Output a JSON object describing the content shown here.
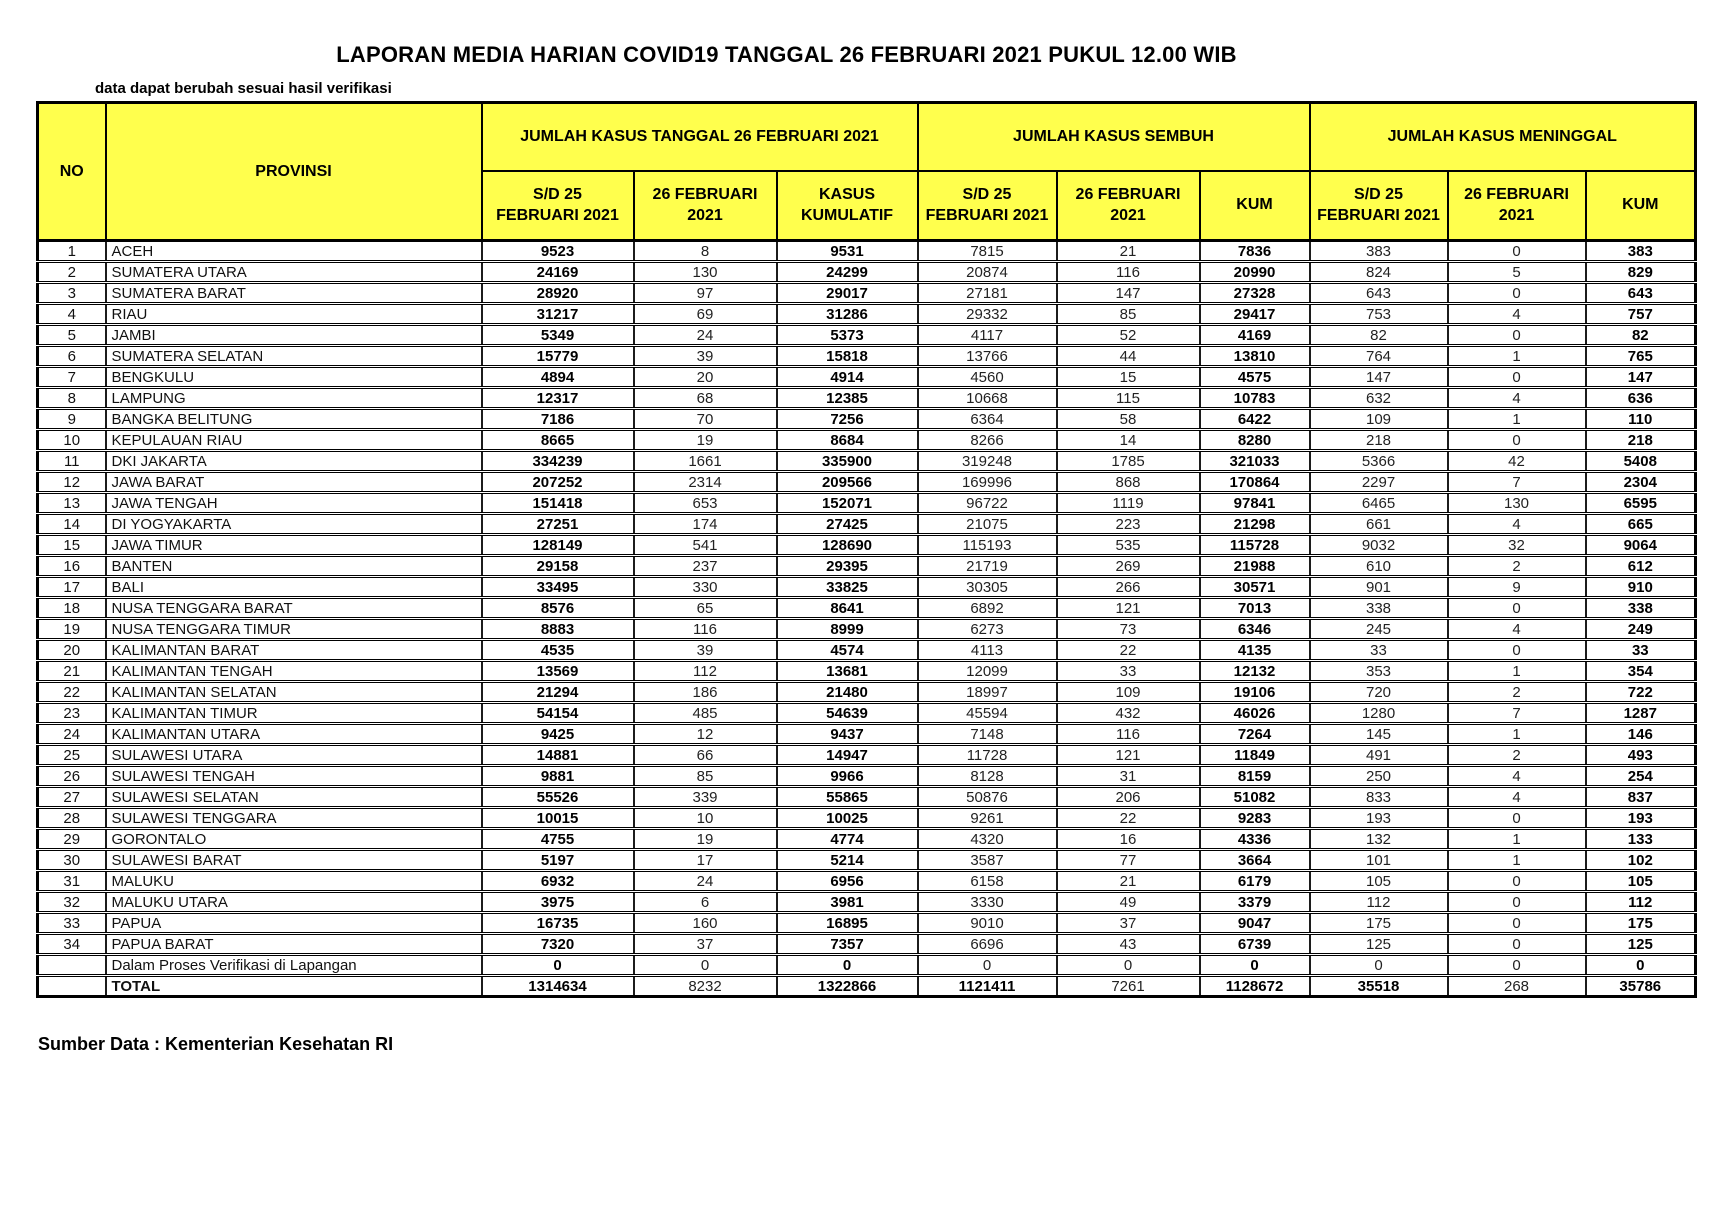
{
  "title": "LAPORAN MEDIA HARIAN COVID19 TANGGAL 26 FEBRUARI 2021 PUKUL 12.00 WIB",
  "note": "data dapat berubah sesuai hasil verifikasi",
  "source": "Sumber Data : Kementerian Kesehatan RI",
  "colors": {
    "header_bg": "#FFFF4D",
    "border": "#000000"
  },
  "table": {
    "header": {
      "no": "NO",
      "provinsi": "PROVINSI",
      "groups": [
        {
          "label": "JUMLAH KASUS TANGGAL 26 FEBRUARI 2021",
          "cols": [
            "S/D 25\nFEBRUARI 2021",
            "26 FEBRUARI\n2021",
            "KASUS\nKUMULATIF"
          ]
        },
        {
          "label": "JUMLAH KASUS SEMBUH",
          "cols": [
            "S/D 25\nFEBRUARI 2021",
            "26 FEBRUARI\n2021",
            "KUM"
          ]
        },
        {
          "label": "JUMLAH KASUS MENINGGAL",
          "cols": [
            "S/D 25\nFEBRUARI 2021",
            "26 FEBRUARI\n2021",
            "KUM"
          ]
        }
      ]
    },
    "rows": [
      {
        "no": 1,
        "provinsi": "ACEH",
        "values": [
          9523,
          8,
          9531,
          7815,
          21,
          7836,
          383,
          0,
          383
        ]
      },
      {
        "no": 2,
        "provinsi": "SUMATERA UTARA",
        "values": [
          24169,
          130,
          24299,
          20874,
          116,
          20990,
          824,
          5,
          829
        ]
      },
      {
        "no": 3,
        "provinsi": "SUMATERA BARAT",
        "values": [
          28920,
          97,
          29017,
          27181,
          147,
          27328,
          643,
          0,
          643
        ]
      },
      {
        "no": 4,
        "provinsi": "RIAU",
        "values": [
          31217,
          69,
          31286,
          29332,
          85,
          29417,
          753,
          4,
          757
        ]
      },
      {
        "no": 5,
        "provinsi": "JAMBI",
        "values": [
          5349,
          24,
          5373,
          4117,
          52,
          4169,
          82,
          0,
          82
        ]
      },
      {
        "no": 6,
        "provinsi": "SUMATERA SELATAN",
        "values": [
          15779,
          39,
          15818,
          13766,
          44,
          13810,
          764,
          1,
          765
        ]
      },
      {
        "no": 7,
        "provinsi": "BENGKULU",
        "values": [
          4894,
          20,
          4914,
          4560,
          15,
          4575,
          147,
          0,
          147
        ]
      },
      {
        "no": 8,
        "provinsi": "LAMPUNG",
        "values": [
          12317,
          68,
          12385,
          10668,
          115,
          10783,
          632,
          4,
          636
        ]
      },
      {
        "no": 9,
        "provinsi": "BANGKA BELITUNG",
        "values": [
          7186,
          70,
          7256,
          6364,
          58,
          6422,
          109,
          1,
          110
        ]
      },
      {
        "no": 10,
        "provinsi": "KEPULAUAN RIAU",
        "values": [
          8665,
          19,
          8684,
          8266,
          14,
          8280,
          218,
          0,
          218
        ]
      },
      {
        "no": 11,
        "provinsi": "DKI JAKARTA",
        "values": [
          334239,
          1661,
          335900,
          319248,
          1785,
          321033,
          5366,
          42,
          5408
        ]
      },
      {
        "no": 12,
        "provinsi": "JAWA BARAT",
        "values": [
          207252,
          2314,
          209566,
          169996,
          868,
          170864,
          2297,
          7,
          2304
        ]
      },
      {
        "no": 13,
        "provinsi": "JAWA TENGAH",
        "values": [
          151418,
          653,
          152071,
          96722,
          1119,
          97841,
          6465,
          130,
          6595
        ]
      },
      {
        "no": 14,
        "provinsi": "DI YOGYAKARTA",
        "values": [
          27251,
          174,
          27425,
          21075,
          223,
          21298,
          661,
          4,
          665
        ]
      },
      {
        "no": 15,
        "provinsi": "JAWA TIMUR",
        "values": [
          128149,
          541,
          128690,
          115193,
          535,
          115728,
          9032,
          32,
          9064
        ]
      },
      {
        "no": 16,
        "provinsi": "BANTEN",
        "values": [
          29158,
          237,
          29395,
          21719,
          269,
          21988,
          610,
          2,
          612
        ]
      },
      {
        "no": 17,
        "provinsi": "BALI",
        "values": [
          33495,
          330,
          33825,
          30305,
          266,
          30571,
          901,
          9,
          910
        ]
      },
      {
        "no": 18,
        "provinsi": "NUSA TENGGARA BARAT",
        "values": [
          8576,
          65,
          8641,
          6892,
          121,
          7013,
          338,
          0,
          338
        ]
      },
      {
        "no": 19,
        "provinsi": "NUSA TENGGARA TIMUR",
        "values": [
          8883,
          116,
          8999,
          6273,
          73,
          6346,
          245,
          4,
          249
        ]
      },
      {
        "no": 20,
        "provinsi": "KALIMANTAN BARAT",
        "values": [
          4535,
          39,
          4574,
          4113,
          22,
          4135,
          33,
          0,
          33
        ]
      },
      {
        "no": 21,
        "provinsi": "KALIMANTAN TENGAH",
        "values": [
          13569,
          112,
          13681,
          12099,
          33,
          12132,
          353,
          1,
          354
        ]
      },
      {
        "no": 22,
        "provinsi": "KALIMANTAN SELATAN",
        "values": [
          21294,
          186,
          21480,
          18997,
          109,
          19106,
          720,
          2,
          722
        ]
      },
      {
        "no": 23,
        "provinsi": "KALIMANTAN TIMUR",
        "values": [
          54154,
          485,
          54639,
          45594,
          432,
          46026,
          1280,
          7,
          1287
        ]
      },
      {
        "no": 24,
        "provinsi": "KALIMANTAN UTARA",
        "values": [
          9425,
          12,
          9437,
          7148,
          116,
          7264,
          145,
          1,
          146
        ]
      },
      {
        "no": 25,
        "provinsi": "SULAWESI UTARA",
        "values": [
          14881,
          66,
          14947,
          11728,
          121,
          11849,
          491,
          2,
          493
        ]
      },
      {
        "no": 26,
        "provinsi": "SULAWESI TENGAH",
        "values": [
          9881,
          85,
          9966,
          8128,
          31,
          8159,
          250,
          4,
          254
        ]
      },
      {
        "no": 27,
        "provinsi": "SULAWESI SELATAN",
        "values": [
          55526,
          339,
          55865,
          50876,
          206,
          51082,
          833,
          4,
          837
        ]
      },
      {
        "no": 28,
        "provinsi": "SULAWESI TENGGARA",
        "values": [
          10015,
          10,
          10025,
          9261,
          22,
          9283,
          193,
          0,
          193
        ]
      },
      {
        "no": 29,
        "provinsi": "GORONTALO",
        "values": [
          4755,
          19,
          4774,
          4320,
          16,
          4336,
          132,
          1,
          133
        ]
      },
      {
        "no": 30,
        "provinsi": "SULAWESI BARAT",
        "values": [
          5197,
          17,
          5214,
          3587,
          77,
          3664,
          101,
          1,
          102
        ]
      },
      {
        "no": 31,
        "provinsi": "MALUKU",
        "values": [
          6932,
          24,
          6956,
          6158,
          21,
          6179,
          105,
          0,
          105
        ]
      },
      {
        "no": 32,
        "provinsi": "MALUKU UTARA",
        "values": [
          3975,
          6,
          3981,
          3330,
          49,
          3379,
          112,
          0,
          112
        ]
      },
      {
        "no": 33,
        "provinsi": "PAPUA",
        "values": [
          16735,
          160,
          16895,
          9010,
          37,
          9047,
          175,
          0,
          175
        ]
      },
      {
        "no": 34,
        "provinsi": "PAPUA BARAT",
        "values": [
          7320,
          37,
          7357,
          6696,
          43,
          6739,
          125,
          0,
          125
        ]
      }
    ],
    "verification_row": {
      "label": "Dalam Proses Verifikasi di Lapangan",
      "values": [
        0,
        0,
        0,
        0,
        0,
        0,
        0,
        0,
        0
      ]
    },
    "total_row": {
      "label": "TOTAL",
      "values": [
        1314634,
        8232,
        1322866,
        1121411,
        7261,
        1128672,
        35518,
        268,
        35786
      ]
    }
  }
}
